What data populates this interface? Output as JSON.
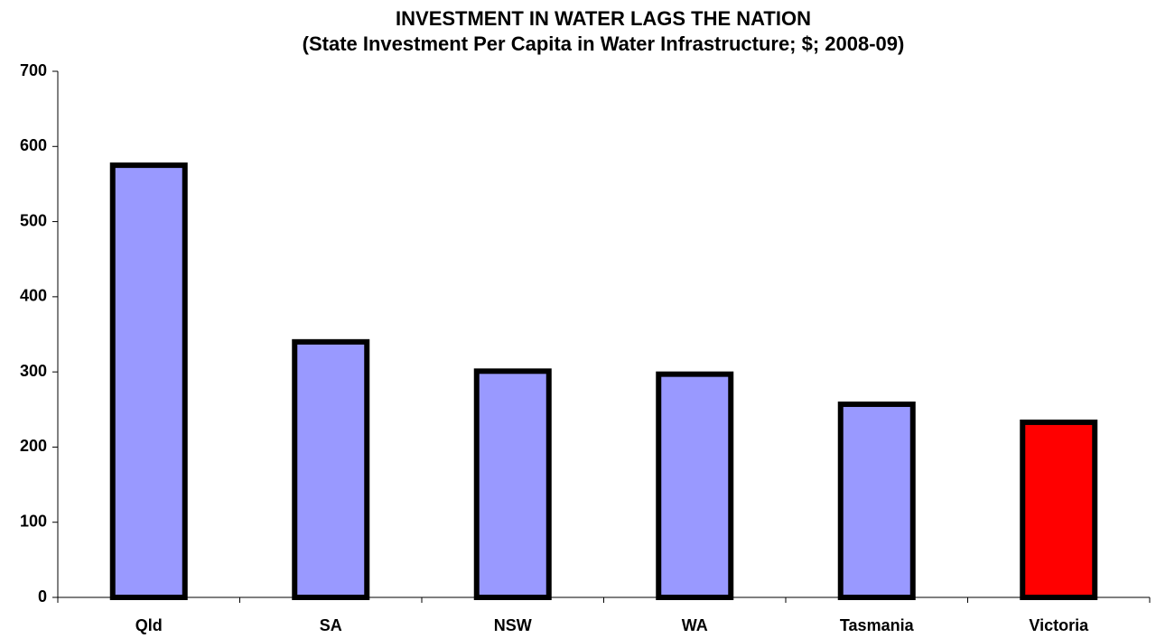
{
  "chart_data": {
    "type": "bar",
    "title": "INVESTMENT IN WATER LAGS THE NATION",
    "subtitle": "(State Investment Per Capita in Water Infrastructure; $; 2008-09)",
    "categories": [
      "Qld",
      "SA",
      "NSW",
      "WA",
      "Tasmania",
      "Victoria"
    ],
    "values": [
      575,
      340,
      301,
      297,
      257,
      233
    ],
    "colors": [
      "#9999ff",
      "#9999ff",
      "#9999ff",
      "#9999ff",
      "#9999ff",
      "#ff0000"
    ],
    "ylim": [
      0,
      700
    ],
    "yticks": [
      0,
      100,
      200,
      300,
      400,
      500,
      600,
      700
    ],
    "grid": false
  }
}
